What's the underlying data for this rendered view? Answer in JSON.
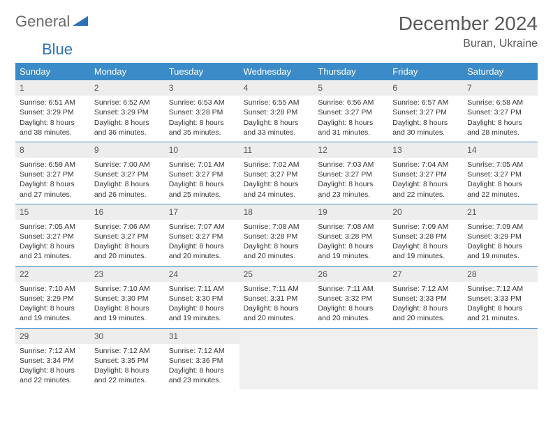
{
  "logo": {
    "text1": "General",
    "text2": "Blue"
  },
  "title": "December 2024",
  "location": "Buran, Ukraine",
  "colors": {
    "header_bg": "#3b8bc8",
    "header_text": "#ffffff",
    "daynum_bg": "#ededed",
    "border": "#3b8bc8",
    "logo_gray": "#6a6a6a",
    "logo_blue": "#2a72b5"
  },
  "weekdays": [
    "Sunday",
    "Monday",
    "Tuesday",
    "Wednesday",
    "Thursday",
    "Friday",
    "Saturday"
  ],
  "days": [
    {
      "n": 1,
      "sunrise": "6:51 AM",
      "sunset": "3:29 PM",
      "daylight": "8 hours and 38 minutes."
    },
    {
      "n": 2,
      "sunrise": "6:52 AM",
      "sunset": "3:29 PM",
      "daylight": "8 hours and 36 minutes."
    },
    {
      "n": 3,
      "sunrise": "6:53 AM",
      "sunset": "3:28 PM",
      "daylight": "8 hours and 35 minutes."
    },
    {
      "n": 4,
      "sunrise": "6:55 AM",
      "sunset": "3:28 PM",
      "daylight": "8 hours and 33 minutes."
    },
    {
      "n": 5,
      "sunrise": "6:56 AM",
      "sunset": "3:27 PM",
      "daylight": "8 hours and 31 minutes."
    },
    {
      "n": 6,
      "sunrise": "6:57 AM",
      "sunset": "3:27 PM",
      "daylight": "8 hours and 30 minutes."
    },
    {
      "n": 7,
      "sunrise": "6:58 AM",
      "sunset": "3:27 PM",
      "daylight": "8 hours and 28 minutes."
    },
    {
      "n": 8,
      "sunrise": "6:59 AM",
      "sunset": "3:27 PM",
      "daylight": "8 hours and 27 minutes."
    },
    {
      "n": 9,
      "sunrise": "7:00 AM",
      "sunset": "3:27 PM",
      "daylight": "8 hours and 26 minutes."
    },
    {
      "n": 10,
      "sunrise": "7:01 AM",
      "sunset": "3:27 PM",
      "daylight": "8 hours and 25 minutes."
    },
    {
      "n": 11,
      "sunrise": "7:02 AM",
      "sunset": "3:27 PM",
      "daylight": "8 hours and 24 minutes."
    },
    {
      "n": 12,
      "sunrise": "7:03 AM",
      "sunset": "3:27 PM",
      "daylight": "8 hours and 23 minutes."
    },
    {
      "n": 13,
      "sunrise": "7:04 AM",
      "sunset": "3:27 PM",
      "daylight": "8 hours and 22 minutes."
    },
    {
      "n": 14,
      "sunrise": "7:05 AM",
      "sunset": "3:27 PM",
      "daylight": "8 hours and 22 minutes."
    },
    {
      "n": 15,
      "sunrise": "7:05 AM",
      "sunset": "3:27 PM",
      "daylight": "8 hours and 21 minutes."
    },
    {
      "n": 16,
      "sunrise": "7:06 AM",
      "sunset": "3:27 PM",
      "daylight": "8 hours and 20 minutes."
    },
    {
      "n": 17,
      "sunrise": "7:07 AM",
      "sunset": "3:27 PM",
      "daylight": "8 hours and 20 minutes."
    },
    {
      "n": 18,
      "sunrise": "7:08 AM",
      "sunset": "3:28 PM",
      "daylight": "8 hours and 20 minutes."
    },
    {
      "n": 19,
      "sunrise": "7:08 AM",
      "sunset": "3:28 PM",
      "daylight": "8 hours and 19 minutes."
    },
    {
      "n": 20,
      "sunrise": "7:09 AM",
      "sunset": "3:28 PM",
      "daylight": "8 hours and 19 minutes."
    },
    {
      "n": 21,
      "sunrise": "7:09 AM",
      "sunset": "3:29 PM",
      "daylight": "8 hours and 19 minutes."
    },
    {
      "n": 22,
      "sunrise": "7:10 AM",
      "sunset": "3:29 PM",
      "daylight": "8 hours and 19 minutes."
    },
    {
      "n": 23,
      "sunrise": "7:10 AM",
      "sunset": "3:30 PM",
      "daylight": "8 hours and 19 minutes."
    },
    {
      "n": 24,
      "sunrise": "7:11 AM",
      "sunset": "3:30 PM",
      "daylight": "8 hours and 19 minutes."
    },
    {
      "n": 25,
      "sunrise": "7:11 AM",
      "sunset": "3:31 PM",
      "daylight": "8 hours and 20 minutes."
    },
    {
      "n": 26,
      "sunrise": "7:11 AM",
      "sunset": "3:32 PM",
      "daylight": "8 hours and 20 minutes."
    },
    {
      "n": 27,
      "sunrise": "7:12 AM",
      "sunset": "3:33 PM",
      "daylight": "8 hours and 20 minutes."
    },
    {
      "n": 28,
      "sunrise": "7:12 AM",
      "sunset": "3:33 PM",
      "daylight": "8 hours and 21 minutes."
    },
    {
      "n": 29,
      "sunrise": "7:12 AM",
      "sunset": "3:34 PM",
      "daylight": "8 hours and 22 minutes."
    },
    {
      "n": 30,
      "sunrise": "7:12 AM",
      "sunset": "3:35 PM",
      "daylight": "8 hours and 22 minutes."
    },
    {
      "n": 31,
      "sunrise": "7:12 AM",
      "sunset": "3:36 PM",
      "daylight": "8 hours and 23 minutes."
    }
  ],
  "labels": {
    "sunrise": "Sunrise:",
    "sunset": "Sunset:",
    "daylight": "Daylight:"
  },
  "grid": {
    "start_weekday": 0,
    "total_days": 31
  }
}
